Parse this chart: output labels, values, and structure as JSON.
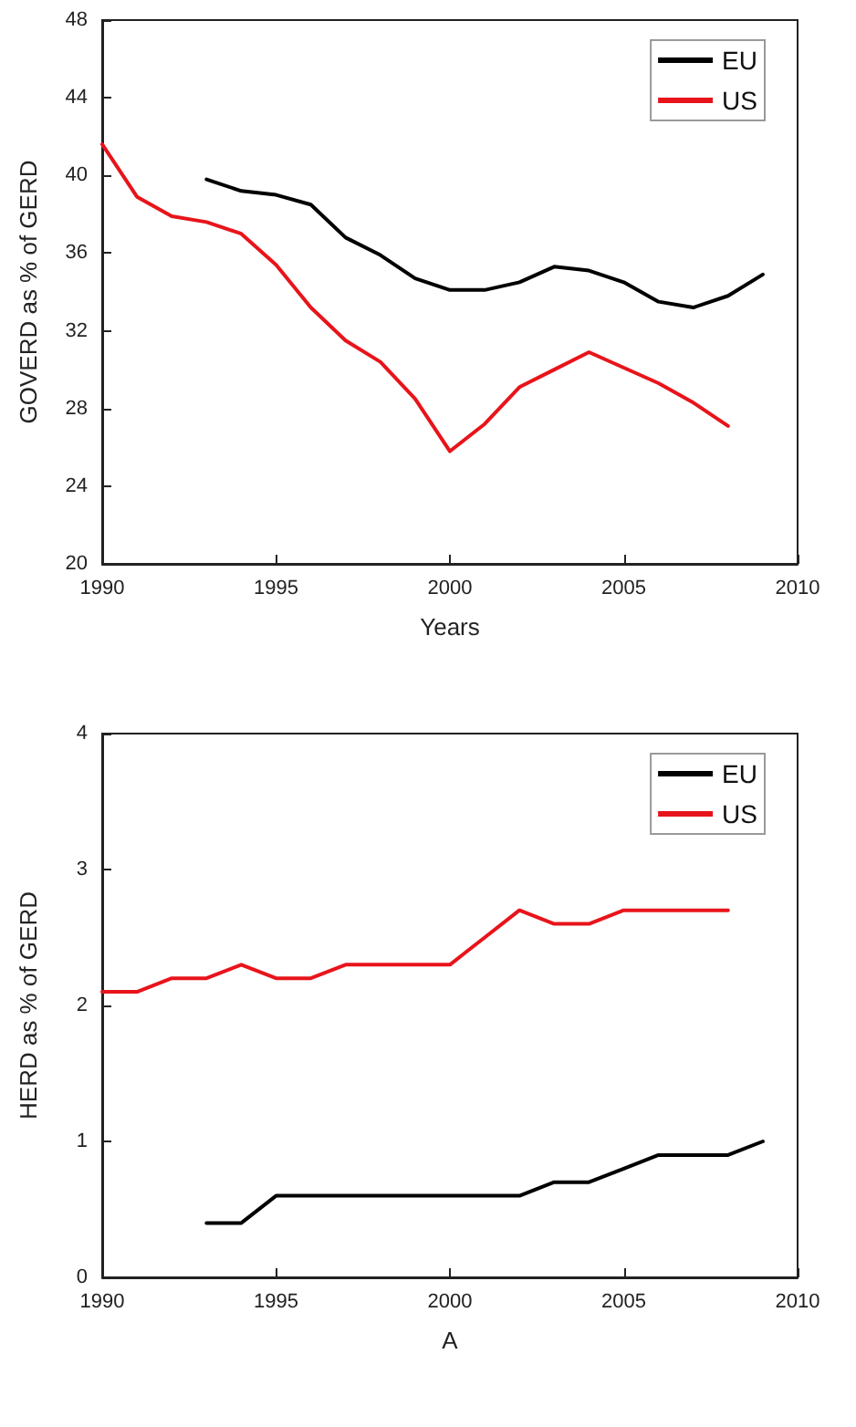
{
  "chart_data": [
    {
      "type": "line",
      "xlabel": "Years",
      "ylabel": "GOVERD as % of GERD",
      "xlim": [
        1990,
        2010
      ],
      "xticks": [
        1990,
        1995,
        2000,
        2005,
        2010
      ],
      "ylim": [
        20,
        48
      ],
      "yticks": [
        20,
        24,
        28,
        32,
        36,
        40,
        44,
        48
      ],
      "grid": false,
      "legend": "top right",
      "marker": "none",
      "line_style": "solid",
      "series": [
        {
          "name": "EU",
          "color": "#000000",
          "x": [
            1993,
            1994,
            1995,
            1996,
            1997,
            1998,
            1999,
            2000,
            2001,
            2002,
            2003,
            2004,
            2005,
            2006,
            2007,
            2008,
            2009
          ],
          "values": [
            39.8,
            39.2,
            39.0,
            38.5,
            36.8,
            35.9,
            34.7,
            34.1,
            34.1,
            34.5,
            35.3,
            35.1,
            34.5,
            33.5,
            33.2,
            33.8,
            34.9
          ]
        },
        {
          "name": "US",
          "color": "#e8141b",
          "x": [
            1990,
            1991,
            1992,
            1993,
            1994,
            1995,
            1996,
            1997,
            1998,
            1999,
            2000,
            2001,
            2002,
            2003,
            2004,
            2005,
            2006,
            2007,
            2008
          ],
          "values": [
            41.6,
            38.9,
            37.9,
            37.6,
            37.0,
            35.4,
            33.2,
            31.5,
            30.4,
            28.5,
            25.8,
            27.2,
            29.1,
            30.0,
            30.9,
            30.1,
            29.3,
            28.3,
            27.1
          ]
        }
      ]
    },
    {
      "type": "line",
      "xlabel": "A",
      "ylabel": "HERD as % of GERD",
      "xlim": [
        1990,
        2010
      ],
      "xticks": [
        1990,
        1995,
        2000,
        2005,
        2010
      ],
      "ylim": [
        0,
        4
      ],
      "yticks": [
        0,
        1,
        2,
        3,
        4
      ],
      "grid": false,
      "legend": "top right",
      "marker": "none",
      "line_style": "solid",
      "series": [
        {
          "name": "EU",
          "color": "#000000",
          "x": [
            1993,
            1994,
            1995,
            1996,
            1997,
            1998,
            1999,
            2000,
            2001,
            2002,
            2003,
            2004,
            2005,
            2006,
            2007,
            2008,
            2009
          ],
          "values": [
            0.4,
            0.4,
            0.6,
            0.6,
            0.6,
            0.6,
            0.6,
            0.6,
            0.6,
            0.6,
            0.7,
            0.7,
            0.8,
            0.9,
            0.9,
            0.9,
            1.0
          ]
        },
        {
          "name": "US",
          "color": "#e8141b",
          "x": [
            1990,
            1991,
            1992,
            1993,
            1994,
            1995,
            1996,
            1997,
            1998,
            1999,
            2000,
            2001,
            2002,
            2003,
            2004,
            2005,
            2006,
            2007,
            2008
          ],
          "values": [
            2.1,
            2.1,
            2.2,
            2.2,
            2.3,
            2.2,
            2.2,
            2.3,
            2.3,
            2.3,
            2.3,
            2.5,
            2.7,
            2.6,
            2.6,
            2.7,
            2.7,
            2.7,
            2.7
          ]
        }
      ]
    }
  ]
}
